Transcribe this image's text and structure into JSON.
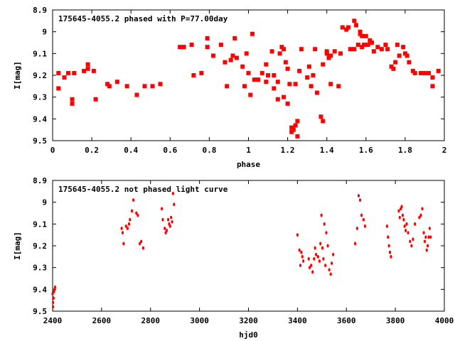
{
  "chart_data": [
    {
      "type": "scatter",
      "title": "175645-4055.2 phased with P=77.00day",
      "xlabel": "phase",
      "ylabel": "I[mag]",
      "xlim": [
        0,
        2
      ],
      "ylim": [
        8.9,
        9.5
      ],
      "y_inverted": true,
      "xticks": [
        "0",
        "0.2",
        "0.4",
        "0.6",
        "0.8",
        "1",
        "1.2",
        "1.4",
        "1.6",
        "1.8",
        "2"
      ],
      "yticks": [
        "8.9",
        "9",
        "9.1",
        "9.2",
        "9.3",
        "9.4",
        "9.5"
      ],
      "marker": "filled-square",
      "color": "#ff0000",
      "points": [
        [
          0.03,
          9.19
        ],
        [
          0.03,
          9.26
        ],
        [
          0.06,
          9.21
        ],
        [
          0.08,
          9.19
        ],
        [
          0.1,
          9.31
        ],
        [
          0.1,
          9.33
        ],
        [
          0.11,
          9.19
        ],
        [
          0.16,
          9.18
        ],
        [
          0.18,
          9.17
        ],
        [
          0.18,
          9.15
        ],
        [
          0.21,
          9.18
        ],
        [
          0.22,
          9.31
        ],
        [
          0.28,
          9.24
        ],
        [
          0.29,
          9.25
        ],
        [
          0.33,
          9.23
        ],
        [
          0.38,
          9.25
        ],
        [
          0.43,
          9.29
        ],
        [
          0.47,
          9.25
        ],
        [
          0.51,
          9.25
        ],
        [
          0.55,
          9.24
        ],
        [
          0.65,
          9.07
        ],
        [
          0.67,
          9.07
        ],
        [
          0.71,
          9.06
        ],
        [
          0.72,
          9.2
        ],
        [
          0.76,
          9.19
        ],
        [
          0.79,
          9.07
        ],
        [
          0.79,
          9.03
        ],
        [
          0.82,
          9.11
        ],
        [
          0.86,
          9.06
        ],
        [
          0.88,
          9.14
        ],
        [
          0.89,
          9.25
        ],
        [
          0.91,
          9.13
        ],
        [
          0.92,
          9.11
        ],
        [
          0.93,
          9.03
        ],
        [
          0.94,
          9.12
        ],
        [
          0.97,
          9.16
        ],
        [
          0.98,
          9.25
        ],
        [
          0.99,
          9.1
        ],
        [
          1.0,
          9.19
        ],
        [
          1.01,
          9.29
        ],
        [
          1.02,
          9.01
        ],
        [
          1.03,
          9.22
        ],
        [
          1.05,
          9.22
        ],
        [
          1.07,
          9.19
        ],
        [
          1.09,
          9.15
        ],
        [
          1.09,
          9.23
        ],
        [
          1.1,
          9.2
        ],
        [
          1.12,
          9.09
        ],
        [
          1.13,
          9.26
        ],
        [
          1.13,
          9.2
        ],
        [
          1.15,
          9.31
        ],
        [
          1.15,
          9.23
        ],
        [
          1.16,
          9.1
        ],
        [
          1.17,
          9.07
        ],
        [
          1.18,
          9.08
        ],
        [
          1.18,
          9.3
        ],
        [
          1.19,
          9.14
        ],
        [
          1.2,
          9.33
        ],
        [
          1.2,
          9.17
        ],
        [
          1.21,
          9.24
        ],
        [
          1.22,
          9.46
        ],
        [
          1.22,
          9.44
        ],
        [
          1.23,
          9.45
        ],
        [
          1.24,
          9.24
        ],
        [
          1.24,
          9.43
        ],
        [
          1.25,
          9.41
        ],
        [
          1.25,
          9.48
        ],
        [
          1.26,
          9.18
        ],
        [
          1.27,
          9.08
        ],
        [
          1.3,
          9.21
        ],
        [
          1.31,
          9.16
        ],
        [
          1.32,
          9.25
        ],
        [
          1.33,
          9.2
        ],
        [
          1.34,
          9.08
        ],
        [
          1.35,
          9.28
        ],
        [
          1.37,
          9.39
        ],
        [
          1.38,
          9.41
        ],
        [
          1.38,
          9.15
        ],
        [
          1.4,
          9.09
        ],
        [
          1.4,
          9.1
        ],
        [
          1.41,
          9.12
        ],
        [
          1.42,
          9.11
        ],
        [
          1.42,
          9.24
        ],
        [
          1.44,
          9.09
        ],
        [
          1.46,
          9.25
        ],
        [
          1.47,
          9.1
        ],
        [
          1.48,
          8.98
        ],
        [
          1.5,
          8.99
        ],
        [
          1.51,
          8.98
        ],
        [
          1.52,
          9.08
        ],
        [
          1.54,
          9.08
        ],
        [
          1.54,
          8.95
        ],
        [
          1.55,
          8.97
        ],
        [
          1.56,
          9.06
        ],
        [
          1.57,
          9.0
        ],
        [
          1.57,
          9.01
        ],
        [
          1.58,
          9.07
        ],
        [
          1.58,
          9.02
        ],
        [
          1.59,
          9.06
        ],
        [
          1.6,
          9.02
        ],
        [
          1.61,
          9.06
        ],
        [
          1.62,
          9.04
        ],
        [
          1.63,
          9.05
        ],
        [
          1.64,
          9.09
        ],
        [
          1.66,
          9.07
        ],
        [
          1.68,
          9.08
        ],
        [
          1.7,
          9.06
        ],
        [
          1.71,
          9.08
        ],
        [
          1.73,
          9.16
        ],
        [
          1.74,
          9.17
        ],
        [
          1.75,
          9.14
        ],
        [
          1.76,
          9.06
        ],
        [
          1.77,
          9.11
        ],
        [
          1.79,
          9.07
        ],
        [
          1.8,
          9.1
        ],
        [
          1.81,
          9.11
        ],
        [
          1.82,
          9.14
        ],
        [
          1.84,
          9.18
        ],
        [
          1.85,
          9.19
        ],
        [
          1.88,
          9.19
        ],
        [
          1.9,
          9.19
        ],
        [
          1.92,
          9.19
        ],
        [
          1.94,
          9.21
        ],
        [
          1.94,
          9.25
        ],
        [
          1.97,
          9.18
        ]
      ]
    },
    {
      "type": "scatter",
      "title": "175645-4055.2 not phased light curve",
      "xlabel": "hjd0",
      "ylabel": "I[mag]",
      "xlim": [
        2400,
        4000
      ],
      "ylim": [
        8.9,
        9.5
      ],
      "y_inverted": true,
      "xticks": [
        "2400",
        "2600",
        "2800",
        "3000",
        "3200",
        "3400",
        "3600",
        "3800",
        "4000"
      ],
      "yticks": [
        "8.9",
        "9",
        "9.1",
        "9.2",
        "9.3",
        "9.4",
        "9.5"
      ],
      "marker": "small-dot",
      "color": "#ff0000",
      "points": [
        [
          2400,
          9.42
        ],
        [
          2402,
          9.46
        ],
        [
          2404,
          9.44
        ],
        [
          2406,
          9.41
        ],
        [
          2408,
          9.4
        ],
        [
          2410,
          9.39
        ],
        [
          2402,
          9.48
        ],
        [
          2682,
          9.12
        ],
        [
          2686,
          9.14
        ],
        [
          2690,
          9.19
        ],
        [
          2700,
          9.11
        ],
        [
          2706,
          9.12
        ],
        [
          2712,
          9.1
        ],
        [
          2716,
          9.08
        ],
        [
          2724,
          9.04
        ],
        [
          2730,
          8.99
        ],
        [
          2742,
          9.05
        ],
        [
          2748,
          9.06
        ],
        [
          2756,
          9.19
        ],
        [
          2762,
          9.18
        ],
        [
          2770,
          9.21
        ],
        [
          2846,
          9.03
        ],
        [
          2850,
          9.08
        ],
        [
          2858,
          9.12
        ],
        [
          2862,
          9.14
        ],
        [
          2866,
          9.13
        ],
        [
          2872,
          9.08
        ],
        [
          2876,
          9.1
        ],
        [
          2880,
          9.11
        ],
        [
          2884,
          9.07
        ],
        [
          2888,
          9.09
        ],
        [
          2892,
          8.96
        ],
        [
          2896,
          9.01
        ],
        [
          3400,
          9.15
        ],
        [
          3408,
          9.22
        ],
        [
          3412,
          9.29
        ],
        [
          3416,
          9.23
        ],
        [
          3420,
          9.25
        ],
        [
          3424,
          9.27
        ],
        [
          3446,
          9.26
        ],
        [
          3450,
          9.3
        ],
        [
          3456,
          9.29
        ],
        [
          3462,
          9.32
        ],
        [
          3468,
          9.26
        ],
        [
          3472,
          9.21
        ],
        [
          3476,
          9.24
        ],
        [
          3484,
          9.25
        ],
        [
          3490,
          9.27
        ],
        [
          3494,
          9.19
        ],
        [
          3498,
          9.06
        ],
        [
          3502,
          9.21
        ],
        [
          3506,
          9.26
        ],
        [
          3510,
          9.1
        ],
        [
          3514,
          9.29
        ],
        [
          3518,
          9.14
        ],
        [
          3524,
          9.2
        ],
        [
          3530,
          9.31
        ],
        [
          3536,
          9.33
        ],
        [
          3540,
          9.28
        ],
        [
          3546,
          9.24
        ],
        [
          3636,
          9.19
        ],
        [
          3644,
          9.12
        ],
        [
          3650,
          8.97
        ],
        [
          3656,
          8.99
        ],
        [
          3662,
          9.06
        ],
        [
          3670,
          9.08
        ],
        [
          3676,
          9.11
        ],
        [
          3766,
          9.11
        ],
        [
          3770,
          9.16
        ],
        [
          3774,
          9.2
        ],
        [
          3778,
          9.23
        ],
        [
          3782,
          9.25
        ],
        [
          3814,
          9.04
        ],
        [
          3818,
          9.07
        ],
        [
          3822,
          9.03
        ],
        [
          3826,
          9.02
        ],
        [
          3830,
          9.06
        ],
        [
          3834,
          9.08
        ],
        [
          3838,
          9.11
        ],
        [
          3842,
          9.13
        ],
        [
          3846,
          9.1
        ],
        [
          3852,
          9.14
        ],
        [
          3860,
          9.18
        ],
        [
          3866,
          9.2
        ],
        [
          3872,
          9.17
        ],
        [
          3880,
          9.1
        ],
        [
          3898,
          9.07
        ],
        [
          3904,
          9.06
        ],
        [
          3910,
          9.03
        ],
        [
          3916,
          9.14
        ],
        [
          3920,
          9.18
        ],
        [
          3924,
          9.16
        ],
        [
          3928,
          9.22
        ],
        [
          3932,
          9.2
        ],
        [
          3936,
          9.16
        ],
        [
          3940,
          9.12
        ],
        [
          3944,
          9.16
        ]
      ]
    }
  ]
}
